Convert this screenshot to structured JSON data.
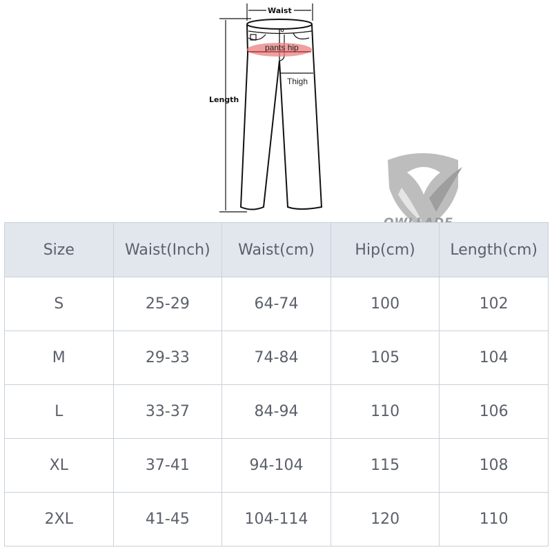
{
  "diagram": {
    "waist_label": "Waist",
    "length_label": "Length",
    "hip_label": "pants hip",
    "thigh_label": "Thigh",
    "hip_highlight_color": "#e88080"
  },
  "logo": {
    "text": "OWLLADE",
    "color": "#a0a0a0"
  },
  "table": {
    "headers": [
      "Size",
      "Waist(Inch)",
      "Waist(cm)",
      "Hip(cm)",
      "Length(cm)"
    ],
    "rows": [
      [
        "S",
        "25-29",
        "64-74",
        "100",
        "102"
      ],
      [
        "M",
        "29-33",
        "74-84",
        "105",
        "104"
      ],
      [
        "L",
        "33-37",
        "84-94",
        "110",
        "106"
      ],
      [
        "XL",
        "37-41",
        "94-104",
        "115",
        "108"
      ],
      [
        "2XL",
        "41-45",
        "104-114",
        "120",
        "110"
      ]
    ],
    "header_bg": "#e2e7ed",
    "border_color": "#c9d0d9"
  }
}
